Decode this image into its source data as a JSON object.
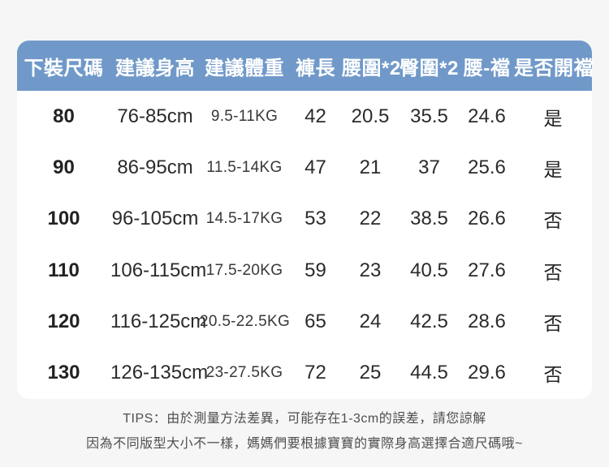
{
  "chart_data": {
    "type": "table",
    "title": "",
    "columns": [
      "下裝尺碼",
      "建議身高",
      "建議體重",
      "褲長",
      "腰圍*2",
      "臀圍*2",
      "腰-襠",
      "是否開襠"
    ],
    "rows": [
      [
        "80",
        "76-85cm",
        "9.5-11KG",
        "42",
        "20.5",
        "35.5",
        "24.6",
        "是"
      ],
      [
        "90",
        "86-95cm",
        "11.5-14KG",
        "47",
        "21",
        "37",
        "25.6",
        "是"
      ],
      [
        "100",
        "96-105cm",
        "14.5-17KG",
        "53",
        "22",
        "38.5",
        "26.6",
        "否"
      ],
      [
        "110",
        "106-115cm",
        "17.5-20KG",
        "59",
        "23",
        "40.5",
        "27.6",
        "否"
      ],
      [
        "120",
        "116-125cm",
        "20.5-22.5KG",
        "65",
        "24",
        "42.5",
        "28.6",
        "否"
      ],
      [
        "130",
        "126-135cm",
        "23-27.5KG",
        "72",
        "25",
        "44.5",
        "29.6",
        "否"
      ]
    ],
    "layout_hints": {
      "header_position": "top",
      "grid": "off",
      "row_separators": "none"
    }
  },
  "tips": {
    "line1": "TIPS：由於測量方法差異，可能存在1-3cm的誤差，請您諒解",
    "line2": "因為不同版型大小不一樣，媽媽們要根據寶寶的實際身高選擇合適尺碼哦~"
  },
  "colors": {
    "page_bg": "#f6f6f6",
    "card_bg": "#ffffff",
    "header_bg": "#7099c9",
    "header_text": "#ffffff",
    "body_text": "#2b2b2b",
    "tips_text": "#4f4f4f"
  }
}
